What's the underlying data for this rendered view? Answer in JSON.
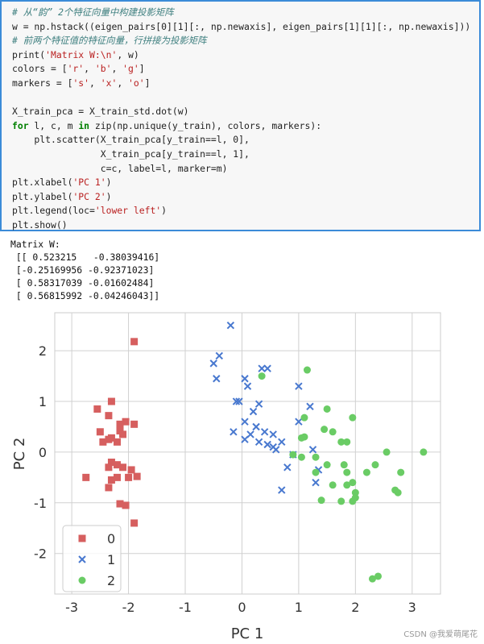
{
  "code": [
    {
      "segments": [
        {
          "t": "# 从“韵” 2个特征向量中构建投影矩阵",
          "c": "cmt"
        }
      ]
    },
    {
      "segments": [
        {
          "t": "w = np.hstack((eigen_pairs[0][1][:, np.newaxis], eigen_pairs[1][1][:, np.newaxis]))",
          "c": ""
        }
      ]
    },
    {
      "segments": [
        {
          "t": "# 前两个特征值的特征向量，行拼接为投影矩阵",
          "c": "cmt"
        }
      ]
    },
    {
      "segments": [
        {
          "t": "print(",
          "c": ""
        },
        {
          "t": "'Matrix W:\\n'",
          "c": "str"
        },
        {
          "t": ", w)",
          "c": ""
        }
      ]
    },
    {
      "segments": [
        {
          "t": "colors = [",
          "c": ""
        },
        {
          "t": "'r'",
          "c": "str"
        },
        {
          "t": ", ",
          "c": ""
        },
        {
          "t": "'b'",
          "c": "str"
        },
        {
          "t": ", ",
          "c": ""
        },
        {
          "t": "'g'",
          "c": "str"
        },
        {
          "t": "]",
          "c": ""
        }
      ]
    },
    {
      "segments": [
        {
          "t": "markers = [",
          "c": ""
        },
        {
          "t": "'s'",
          "c": "str"
        },
        {
          "t": ", ",
          "c": ""
        },
        {
          "t": "'x'",
          "c": "str"
        },
        {
          "t": ", ",
          "c": ""
        },
        {
          "t": "'o'",
          "c": "str"
        },
        {
          "t": "]",
          "c": ""
        }
      ]
    },
    {
      "segments": [
        {
          "t": "",
          "c": ""
        }
      ]
    },
    {
      "segments": [
        {
          "t": "X_train_pca = X_train_std.dot(w)",
          "c": ""
        }
      ]
    },
    {
      "segments": [
        {
          "t": "for",
          "c": "kw"
        },
        {
          "t": " l, c, m ",
          "c": ""
        },
        {
          "t": "in",
          "c": "kw"
        },
        {
          "t": " zip(np.unique(y_train), colors, markers):",
          "c": ""
        }
      ]
    },
    {
      "segments": [
        {
          "t": "    plt.scatter(X_train_pca[y_train==l, 0],",
          "c": ""
        }
      ]
    },
    {
      "segments": [
        {
          "t": "                X_train_pca[y_train==l, 1],",
          "c": ""
        }
      ]
    },
    {
      "segments": [
        {
          "t": "                c=c, label=l, marker=m)",
          "c": ""
        }
      ]
    },
    {
      "segments": [
        {
          "t": "plt.xlabel(",
          "c": ""
        },
        {
          "t": "'PC 1'",
          "c": "str"
        },
        {
          "t": ")",
          "c": ""
        }
      ]
    },
    {
      "segments": [
        {
          "t": "plt.ylabel(",
          "c": ""
        },
        {
          "t": "'PC 2'",
          "c": "str"
        },
        {
          "t": ")",
          "c": ""
        }
      ]
    },
    {
      "segments": [
        {
          "t": "plt.legend(loc=",
          "c": ""
        },
        {
          "t": "'lower left'",
          "c": "str"
        },
        {
          "t": ")",
          "c": ""
        }
      ]
    },
    {
      "segments": [
        {
          "t": "plt.show()",
          "c": ""
        }
      ]
    }
  ],
  "output_text": "Matrix W:\n [[ 0.523215   -0.38039416]\n [-0.25169956 -0.92371023]\n [ 0.58317039 -0.01602484]\n [ 0.56815992 -0.04246043]]",
  "watermark": "CSDN @我爱萌尾花",
  "chart_data": {
    "type": "scatter",
    "xlabel": "PC 1",
    "ylabel": "PC 2",
    "xlim": [
      -3.3,
      3.5
    ],
    "ylim": [
      -2.8,
      2.75
    ],
    "xticks": [
      -3,
      -2,
      -1,
      0,
      1,
      2,
      3
    ],
    "yticks": [
      -2,
      -1,
      0,
      1,
      2
    ],
    "grid": true,
    "legend_position": "lower-left",
    "series": [
      {
        "name": "0",
        "marker": "s",
        "color": "#d65f5f",
        "points": [
          [
            -1.9,
            2.18
          ],
          [
            -2.3,
            1.0
          ],
          [
            -2.55,
            0.85
          ],
          [
            -2.35,
            0.72
          ],
          [
            -2.05,
            0.6
          ],
          [
            -2.15,
            0.55
          ],
          [
            -1.9,
            0.55
          ],
          [
            -2.5,
            0.4
          ],
          [
            -2.15,
            0.42
          ],
          [
            -2.3,
            0.28
          ],
          [
            -2.2,
            0.2
          ],
          [
            -2.35,
            0.25
          ],
          [
            -2.45,
            0.2
          ],
          [
            -2.1,
            0.35
          ],
          [
            -2.3,
            -0.2
          ],
          [
            -2.1,
            -0.3
          ],
          [
            -2.2,
            -0.25
          ],
          [
            -2.35,
            -0.3
          ],
          [
            -1.95,
            -0.35
          ],
          [
            -2.0,
            -0.5
          ],
          [
            -2.75,
            -0.5
          ],
          [
            -1.85,
            -0.48
          ],
          [
            -2.2,
            -0.5
          ],
          [
            -2.3,
            -0.55
          ],
          [
            -2.35,
            -0.7
          ],
          [
            -2.15,
            -1.02
          ],
          [
            -2.05,
            -1.05
          ],
          [
            -1.9,
            -1.4
          ]
        ]
      },
      {
        "name": "1",
        "marker": "x",
        "color": "#4878cf",
        "points": [
          [
            -0.2,
            2.5
          ],
          [
            -0.4,
            1.9
          ],
          [
            -0.5,
            1.75
          ],
          [
            -0.45,
            1.45
          ],
          [
            0.35,
            1.65
          ],
          [
            0.45,
            1.65
          ],
          [
            0.05,
            1.45
          ],
          [
            0.1,
            1.3
          ],
          [
            -0.1,
            1.0
          ],
          [
            -0.05,
            1.0
          ],
          [
            0.3,
            0.95
          ],
          [
            0.2,
            0.8
          ],
          [
            0.05,
            0.6
          ],
          [
            0.25,
            0.5
          ],
          [
            -0.15,
            0.4
          ],
          [
            0.4,
            0.4
          ],
          [
            0.15,
            0.35
          ],
          [
            0.05,
            0.25
          ],
          [
            0.3,
            0.2
          ],
          [
            0.55,
            0.35
          ],
          [
            0.45,
            0.15
          ],
          [
            0.55,
            0.1
          ],
          [
            0.7,
            0.2
          ],
          [
            0.6,
            0.05
          ],
          [
            0.8,
            -0.3
          ],
          [
            0.7,
            -0.75
          ],
          [
            0.9,
            -0.05
          ],
          [
            1.0,
            1.3
          ],
          [
            1.2,
            0.9
          ],
          [
            1.0,
            0.6
          ],
          [
            1.25,
            0.05
          ],
          [
            1.35,
            -0.35
          ],
          [
            1.3,
            -0.6
          ]
        ]
      },
      {
        "name": "2",
        "marker": "o",
        "color": "#6acc65",
        "points": [
          [
            0.35,
            1.5
          ],
          [
            1.15,
            1.62
          ],
          [
            1.1,
            0.68
          ],
          [
            1.5,
            0.85
          ],
          [
            1.95,
            0.68
          ],
          [
            1.45,
            0.45
          ],
          [
            1.6,
            0.4
          ],
          [
            1.1,
            0.3
          ],
          [
            1.05,
            0.28
          ],
          [
            1.75,
            0.2
          ],
          [
            1.85,
            0.2
          ],
          [
            0.9,
            -0.05
          ],
          [
            1.05,
            -0.1
          ],
          [
            1.3,
            -0.1
          ],
          [
            2.55,
            0.0
          ],
          [
            3.2,
            0.0
          ],
          [
            1.5,
            -0.25
          ],
          [
            1.8,
            -0.25
          ],
          [
            2.35,
            -0.25
          ],
          [
            1.3,
            -0.4
          ],
          [
            1.85,
            -0.4
          ],
          [
            2.2,
            -0.4
          ],
          [
            2.8,
            -0.4
          ],
          [
            1.95,
            -0.6
          ],
          [
            1.6,
            -0.65
          ],
          [
            1.85,
            -0.65
          ],
          [
            2.0,
            -0.8
          ],
          [
            2.7,
            -0.75
          ],
          [
            2.75,
            -0.8
          ],
          [
            1.4,
            -0.95
          ],
          [
            1.75,
            -0.97
          ],
          [
            1.95,
            -0.97
          ],
          [
            2.0,
            -0.9
          ],
          [
            2.3,
            -2.5
          ],
          [
            2.4,
            -2.45
          ]
        ]
      }
    ]
  }
}
